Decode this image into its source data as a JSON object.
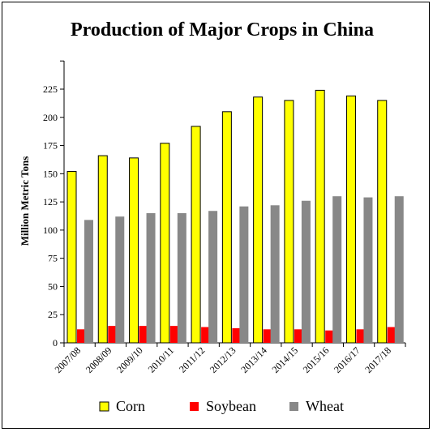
{
  "chart_data": {
    "type": "bar",
    "title": "Production of Major Crops in China",
    "xlabel": "",
    "ylabel": "Million Metric Tons",
    "ylim": [
      0,
      250
    ],
    "yticks": [
      0,
      25,
      50,
      75,
      100,
      125,
      150,
      175,
      200,
      225
    ],
    "grid": false,
    "legend_position": "bottom",
    "categories": [
      "2007/08",
      "2008/09",
      "2009/10",
      "2010/11",
      "2011/12",
      "2012/13",
      "2013/14",
      "2014/15",
      "2015/16",
      "2016/17",
      "2017/18"
    ],
    "series": [
      {
        "name": "Corn",
        "color": "#ffff00",
        "values": [
          152,
          166,
          164,
          177,
          192,
          205,
          218,
          215,
          224,
          219,
          215
        ]
      },
      {
        "name": "Soybean",
        "color": "#ff0000",
        "values": [
          12,
          15,
          15,
          15,
          14,
          13,
          12,
          12,
          11,
          12,
          14
        ]
      },
      {
        "name": "Wheat",
        "color": "#888888",
        "values": [
          109,
          112,
          115,
          115,
          117,
          121,
          122,
          126,
          130,
          129,
          130
        ]
      }
    ]
  }
}
